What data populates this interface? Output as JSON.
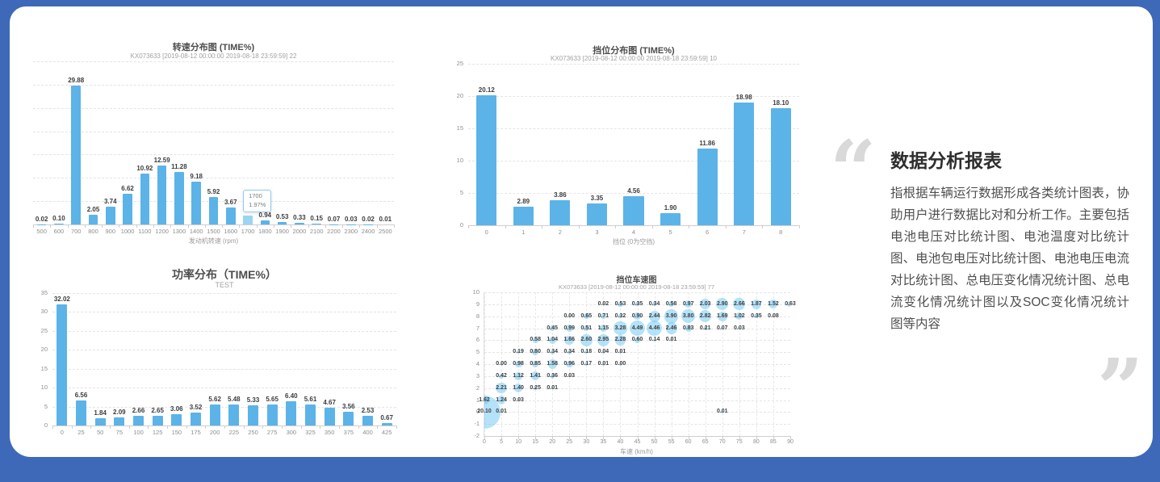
{
  "page": {
    "background_color": "#3d69b8",
    "card_color": "#ffffff"
  },
  "colors": {
    "bar": "#5cb3e8",
    "bar_highlight": "#9ad5f3",
    "bubble": "#a9def8",
    "grid": "#e4e4e4",
    "title_text": "#4d4d4d",
    "subtitle_text": "#a2a2a2",
    "quote_mark": "#d9d9d9"
  },
  "quote": {
    "open": "“",
    "close": "”",
    "title": "数据分析报表",
    "body": "指根据车辆运行数据形成各类统计图表，协助用户进行数据比对和分析工作。主要包括电池电压对比统计图、电池温度对比统计图、电池包电压对比统计图、电池电压电流对比统计图、总电压变化情况统计图、总电流变化情况统计图以及SOC变化情况统计图等内容"
  },
  "chart_data": [
    {
      "id": "rpm-distribution",
      "type": "bar",
      "title": "转速分布图 (TIME%)",
      "subtitle": "KX073633 [2019-08-12 00:00:00 2019-08-18 23:59:59] 22",
      "xlabel": "发动机转速 (rpm)",
      "categories": [
        500,
        600,
        700,
        800,
        900,
        1000,
        1100,
        1200,
        1300,
        1400,
        1500,
        1600,
        1700,
        1800,
        1900,
        2000,
        2100,
        2200,
        2300,
        2400,
        2500
      ],
      "values": [
        "0.02",
        "0.10",
        "29.88",
        "2.05",
        "3.74",
        "6.62",
        "10.92",
        "12.59",
        "11.28",
        "9.18",
        "5.92",
        "3.67",
        "1.97",
        "0.94",
        "0.53",
        "0.33",
        "0.15",
        "0.07",
        "0.03",
        "0.02",
        "0.01"
      ],
      "ylim": [
        0,
        35
      ],
      "ytick_step": 5,
      "show_yticks": false,
      "grid_on": true,
      "tooltip": {
        "index": 12,
        "line1": "1700",
        "line2": "1.97%"
      }
    },
    {
      "id": "gear-distribution",
      "type": "bar",
      "title": "挡位分布图 (TIME%)",
      "subtitle": "KX073633 [2019-08-12 00:00:00 2019-08-18 23:59:59] 10",
      "xlabel": "挡位 (0为空挡)",
      "categories": [
        0,
        1,
        2,
        3,
        4,
        5,
        6,
        7,
        8
      ],
      "values": [
        "20.12",
        "2.89",
        "3.86",
        "3.35",
        "4.56",
        "1.90",
        "11.86",
        "18.98",
        "18.10"
      ],
      "ylim": [
        0,
        25
      ],
      "ytick_step": 5,
      "show_yticks": true,
      "grid_on": true
    },
    {
      "id": "power-distribution",
      "type": "bar",
      "title": "功率分布（TIME%）",
      "subtitle": "TEST",
      "xlabel": "",
      "categories": [
        0,
        25,
        50,
        75,
        100,
        125,
        150,
        175,
        200,
        225,
        250,
        275,
        300,
        325,
        350,
        375,
        400,
        425
      ],
      "values": [
        "32.02",
        "6.56",
        "1.84",
        "2.09",
        "2.66",
        "2.65",
        "3.06",
        "3.52",
        "5.62",
        "5.48",
        "5.33",
        "5.65",
        "6.40",
        "5.61",
        "4.67",
        "3.56",
        "2.53",
        "0.67"
      ],
      "ylim": [
        0,
        35
      ],
      "ytick_step": 5,
      "show_yticks": true,
      "grid_on": true
    },
    {
      "id": "gear-speed",
      "type": "scatter",
      "title": "挡位车速图",
      "subtitle": "KX073633 [2019-08-12 00:00:00 2019-08-18 23:59:59] 77",
      "xlabel": "车速 (km/h)",
      "xlim": [
        0,
        90
      ],
      "xtick_step": 5,
      "ylim": [
        -2,
        10
      ],
      "ytick_step": 1,
      "grid_on": true,
      "points": [
        [
          0,
          0,
          "20.10"
        ],
        [
          5,
          0,
          "0.01"
        ],
        [
          70,
          0,
          "0.01"
        ],
        [
          0,
          1,
          "1.62"
        ],
        [
          5,
          1,
          "1.24"
        ],
        [
          10,
          1,
          "0.03"
        ],
        [
          5,
          2,
          "2.21"
        ],
        [
          10,
          2,
          "1.40"
        ],
        [
          15,
          2,
          "0.25"
        ],
        [
          20,
          2,
          "0.01"
        ],
        [
          5,
          3,
          "0.42"
        ],
        [
          10,
          3,
          "1.12"
        ],
        [
          15,
          3,
          "1.41"
        ],
        [
          20,
          3,
          "0.36"
        ],
        [
          25,
          3,
          "0.03"
        ],
        [
          5,
          4,
          "0.00"
        ],
        [
          10,
          4,
          "0.98"
        ],
        [
          15,
          4,
          "0.85"
        ],
        [
          20,
          4,
          "1.58"
        ],
        [
          25,
          4,
          "0.96"
        ],
        [
          30,
          4,
          "0.17"
        ],
        [
          35,
          4,
          "0.01"
        ],
        [
          40,
          4,
          "0.00"
        ],
        [
          10,
          5,
          "0.19"
        ],
        [
          15,
          5,
          "0.80"
        ],
        [
          20,
          5,
          "0.34"
        ],
        [
          25,
          5,
          "0.34"
        ],
        [
          30,
          5,
          "0.18"
        ],
        [
          35,
          5,
          "0.04"
        ],
        [
          40,
          5,
          "0.01"
        ],
        [
          15,
          6,
          "0.58"
        ],
        [
          20,
          6,
          "1.04"
        ],
        [
          25,
          6,
          "1.66"
        ],
        [
          30,
          6,
          "2.60"
        ],
        [
          35,
          6,
          "2.95"
        ],
        [
          40,
          6,
          "2.28"
        ],
        [
          45,
          6,
          "0.60"
        ],
        [
          50,
          6,
          "0.14"
        ],
        [
          55,
          6,
          "0.01"
        ],
        [
          20,
          7,
          "0.45"
        ],
        [
          25,
          7,
          "0.99"
        ],
        [
          30,
          7,
          "0.51"
        ],
        [
          35,
          7,
          "1.15"
        ],
        [
          40,
          7,
          "3.28"
        ],
        [
          45,
          7,
          "4.49"
        ],
        [
          50,
          7,
          "4.46"
        ],
        [
          55,
          7,
          "2.46"
        ],
        [
          60,
          7,
          "0.83"
        ],
        [
          65,
          7,
          "0.21"
        ],
        [
          70,
          7,
          "0.07"
        ],
        [
          75,
          7,
          "0.03"
        ],
        [
          25,
          8,
          "0.00"
        ],
        [
          30,
          8,
          "0.65"
        ],
        [
          35,
          8,
          "0.71"
        ],
        [
          40,
          8,
          "0.32"
        ],
        [
          45,
          8,
          "0.90"
        ],
        [
          50,
          8,
          "2.44"
        ],
        [
          55,
          8,
          "3.90"
        ],
        [
          60,
          8,
          "3.80"
        ],
        [
          65,
          8,
          "2.82"
        ],
        [
          70,
          8,
          "1.69"
        ],
        [
          75,
          8,
          "1.02"
        ],
        [
          80,
          8,
          "0.35"
        ],
        [
          85,
          8,
          "0.08"
        ],
        [
          35,
          9,
          "0.02"
        ],
        [
          40,
          9,
          "0.53"
        ],
        [
          45,
          9,
          "0.35"
        ],
        [
          50,
          9,
          "0.34"
        ],
        [
          55,
          9,
          "0.58"
        ],
        [
          60,
          9,
          "0.97"
        ],
        [
          65,
          9,
          "2.03"
        ],
        [
          70,
          9,
          "2.90"
        ],
        [
          75,
          9,
          "2.66"
        ],
        [
          80,
          9,
          "1.87"
        ],
        [
          85,
          9,
          "1.52"
        ],
        [
          90,
          9,
          "0.63"
        ]
      ]
    }
  ]
}
